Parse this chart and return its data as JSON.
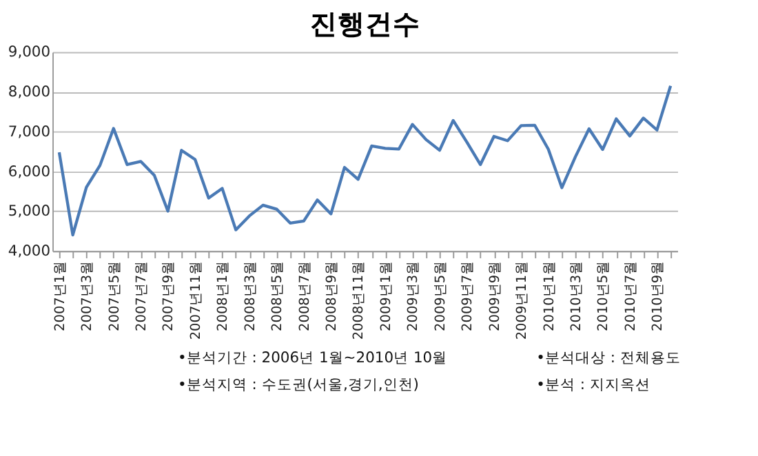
{
  "chart_data": {
    "type": "line",
    "title": "진행건수",
    "categories": [
      "2007년1월",
      null,
      "2007년3월",
      null,
      "2007년5월",
      null,
      "2007년7월",
      null,
      "2007년9월",
      null,
      "2007년11월",
      null,
      "2008년1월",
      null,
      "2008년3월",
      null,
      "2008년5월",
      null,
      "2008년7월",
      null,
      "2008년9월",
      null,
      "2008년11월",
      null,
      "2009년1월",
      null,
      "2009년3월",
      null,
      "2009년5월",
      null,
      "2009년7월",
      null,
      "2009년9월",
      null,
      "2009년11월",
      null,
      "2010년1월",
      null,
      "2010년3월",
      null,
      "2010년5월",
      null,
      "2010년7월",
      null,
      "2010년9월",
      null
    ],
    "values": [
      6480,
      4400,
      5600,
      6150,
      7080,
      6170,
      6250,
      5900,
      5000,
      6530,
      6300,
      5330,
      5570,
      4530,
      4880,
      5150,
      5050,
      4700,
      4750,
      5280,
      4930,
      6100,
      5800,
      6640,
      6580,
      6560,
      7180,
      6800,
      6530,
      7280,
      6740,
      6170,
      6880,
      6770,
      7150,
      7160,
      6560,
      5590,
      6370,
      7070,
      6550,
      7320,
      6890,
      7340,
      7040,
      8150
    ],
    "color": "#4a7ab5",
    "ylim": [
      4000,
      9000
    ],
    "yticks": [
      {
        "value": 4000,
        "label": "4,000"
      },
      {
        "value": 5000,
        "label": "5,000"
      },
      {
        "value": 6000,
        "label": "6,000"
      },
      {
        "value": 7000,
        "label": "7,000"
      },
      {
        "value": 8000,
        "label": "8,000"
      },
      {
        "value": 9000,
        "label": "9,000"
      }
    ],
    "grid": "y",
    "line_style": "solid",
    "annotations": [
      "•분석기간 : 2006년 1월~2010년 10월",
      "•분석대상 : 전체용도",
      "•분석지역 : 수도권(서울,경기,인천)",
      "•분석 : 지지옥션"
    ]
  }
}
